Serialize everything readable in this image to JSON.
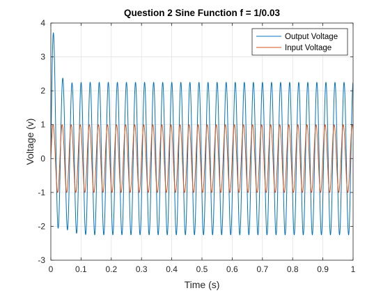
{
  "chart_data": {
    "type": "line",
    "title": "Question 2 Sine Function f = 1/0.03",
    "xlabel": "Time (s)",
    "ylabel": "Voltage (v)",
    "xlim": [
      0,
      1
    ],
    "ylim": [
      -3,
      4
    ],
    "xticks": [
      0,
      0.1,
      0.2,
      0.3,
      0.4,
      0.5,
      0.6,
      0.7,
      0.8,
      0.9,
      1
    ],
    "xtick_labels": [
      "0",
      "0.1",
      "0.2",
      "0.3",
      "0.4",
      "0.5",
      "0.6",
      "0.7",
      "0.8",
      "0.9",
      "1"
    ],
    "yticks": [
      -3,
      -2,
      -1,
      0,
      1,
      2,
      3,
      4
    ],
    "ytick_labels": [
      "-3",
      "-2",
      "-1",
      "0",
      "1",
      "2",
      "3",
      "4"
    ],
    "grid": true,
    "legend_position": "top-right",
    "series": [
      {
        "name": "Output Voltage",
        "color": "#0072BD",
        "frequency_hz": 33.3333,
        "steady_amplitude": 2.25,
        "peak_max": 3.3,
        "peak_min": -2.3
      },
      {
        "name": "Input Voltage",
        "color": "#D95319",
        "frequency_hz": 33.3333,
        "amplitude": 1.0
      }
    ]
  }
}
